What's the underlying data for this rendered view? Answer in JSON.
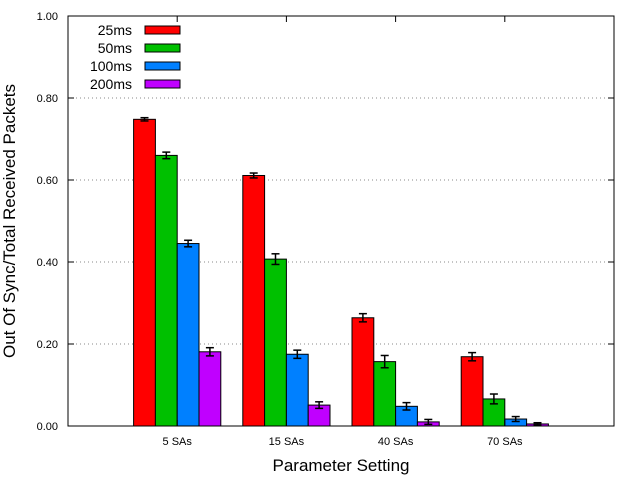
{
  "chart_data": {
    "type": "bar",
    "title": "",
    "xlabel": "Parameter Setting",
    "ylabel": "Out Of Sync/Total Received Packets",
    "categories": [
      "5 SAs",
      "15 SAs",
      "40 SAs",
      "70 SAs"
    ],
    "ylim": [
      0,
      1.0
    ],
    "yticks": [
      "0.00",
      "0.20",
      "0.40",
      "0.60",
      "0.80",
      "1.00"
    ],
    "grid": true,
    "legend_position": "top-left",
    "series": [
      {
        "name": "25ms",
        "color": "#ff0000",
        "values": [
          0.748,
          0.611,
          0.264,
          0.169
        ],
        "errors": [
          0.004,
          0.006,
          0.01,
          0.01
        ]
      },
      {
        "name": "50ms",
        "color": "#00c000",
        "values": [
          0.66,
          0.407,
          0.157,
          0.066
        ],
        "errors": [
          0.008,
          0.013,
          0.015,
          0.012
        ]
      },
      {
        "name": "100ms",
        "color": "#0080ff",
        "values": [
          0.445,
          0.175,
          0.048,
          0.017
        ],
        "errors": [
          0.008,
          0.01,
          0.009,
          0.006
        ]
      },
      {
        "name": "200ms",
        "color": "#c000ff",
        "values": [
          0.181,
          0.051,
          0.01,
          0.005
        ],
        "errors": [
          0.01,
          0.008,
          0.006,
          0.003
        ]
      }
    ]
  }
}
